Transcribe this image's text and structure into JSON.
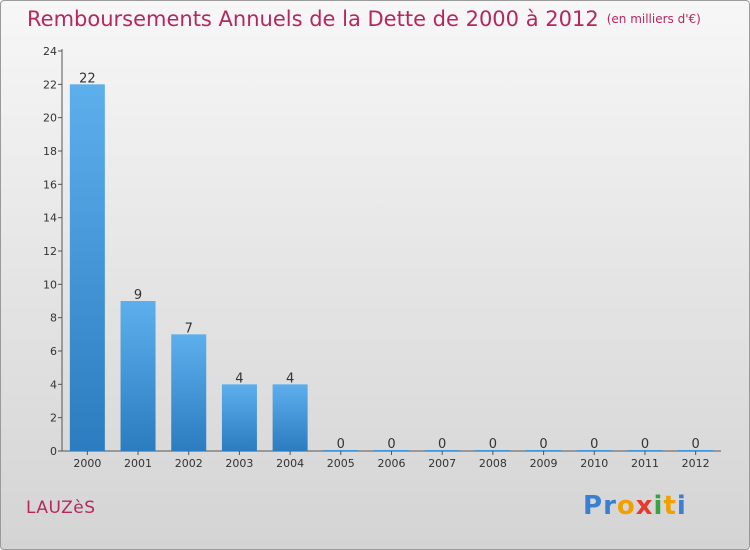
{
  "title": "Remboursements Annuels de la Dette de 2000 à 2012",
  "unit": "(en milliers d'€)",
  "commune": "LAUZèS",
  "logo": {
    "letters": [
      {
        "ch": "P",
        "color": "#3b7fd0"
      },
      {
        "ch": "r",
        "color": "#3b7fd0"
      },
      {
        "ch": "o",
        "color": "#f0a000"
      },
      {
        "ch": "x",
        "color": "#e8392c"
      },
      {
        "ch": "i",
        "color": "#3aa245"
      },
      {
        "ch": "t",
        "color": "#f0a000"
      },
      {
        "ch": "i",
        "color": "#3b7fd0"
      }
    ]
  },
  "colors": {
    "title": "#b5285f",
    "bar_top": "#5dafec",
    "bar_bottom": "#2b7cc0"
  },
  "chart_data": {
    "type": "bar",
    "categories": [
      "2000",
      "2001",
      "2002",
      "2003",
      "2004",
      "2005",
      "2006",
      "2007",
      "2008",
      "2009",
      "2010",
      "2011",
      "2012"
    ],
    "values": [
      22,
      9,
      7,
      4,
      4,
      0,
      0,
      0,
      0,
      0,
      0,
      0,
      0
    ],
    "ylim": [
      0,
      24
    ],
    "yticks": [
      0,
      2,
      4,
      6,
      8,
      10,
      12,
      14,
      16,
      18,
      20,
      22,
      24
    ],
    "grid": false,
    "legend": "none"
  }
}
